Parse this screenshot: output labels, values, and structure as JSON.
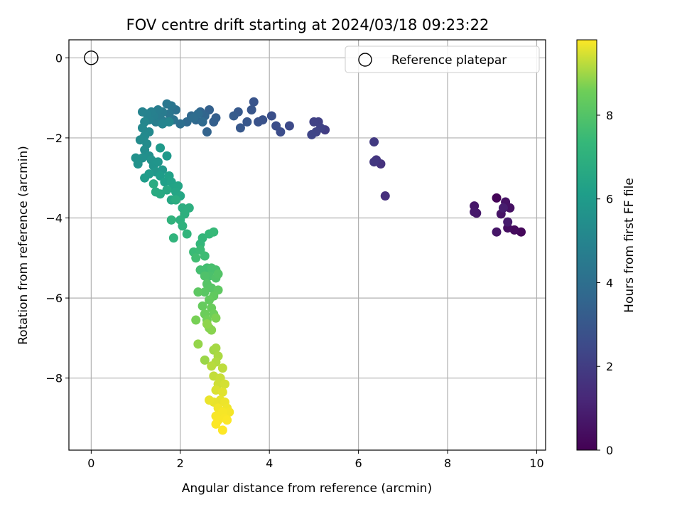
{
  "chart_data": {
    "type": "scatter",
    "title": "FOV centre drift starting at 2024/03/18 09:23:22",
    "xlabel": "Angular distance from reference (arcmin)",
    "ylabel": "Rotation from reference (arcmin)",
    "xlim": [
      -0.5,
      10.2
    ],
    "ylim": [
      -9.8,
      0.45
    ],
    "x_ticks": [
      0,
      2,
      4,
      6,
      8,
      10
    ],
    "y_ticks": [
      0,
      -2,
      -4,
      -6,
      -8
    ],
    "grid": true,
    "colormap": "viridis",
    "colorbar": {
      "label": "Hours from first FF file",
      "range": [
        0,
        9.8
      ],
      "ticks": [
        0,
        2,
        4,
        6,
        8
      ]
    },
    "legend": {
      "placement": "top-right",
      "entries": [
        {
          "label": "Reference platepar",
          "marker": "open-circle"
        }
      ]
    },
    "reference_point": {
      "x": 0,
      "y": 0
    },
    "points": [
      {
        "x": 9.1,
        "y": -3.5,
        "h": 0.1
      },
      {
        "x": 9.65,
        "y": -4.35,
        "h": 0.2
      },
      {
        "x": 9.5,
        "y": -4.3,
        "h": 0.3
      },
      {
        "x": 9.35,
        "y": -4.25,
        "h": 0.4
      },
      {
        "x": 9.4,
        "y": -3.75,
        "h": 0.5
      },
      {
        "x": 9.3,
        "y": -3.6,
        "h": 0.55
      },
      {
        "x": 9.2,
        "y": -3.9,
        "h": 0.6
      },
      {
        "x": 9.1,
        "y": -4.35,
        "h": 0.65
      },
      {
        "x": 8.6,
        "y": -3.7,
        "h": 0.7
      },
      {
        "x": 8.65,
        "y": -3.88,
        "h": 0.75
      },
      {
        "x": 8.6,
        "y": -3.85,
        "h": 0.8
      },
      {
        "x": 9.35,
        "y": -4.1,
        "h": 0.85
      },
      {
        "x": 9.25,
        "y": -3.75,
        "h": 0.9
      },
      {
        "x": 6.6,
        "y": -3.45,
        "h": 1.5
      },
      {
        "x": 6.5,
        "y": -2.65,
        "h": 1.6
      },
      {
        "x": 6.4,
        "y": -2.55,
        "h": 1.7
      },
      {
        "x": 6.35,
        "y": -2.6,
        "h": 1.8
      },
      {
        "x": 6.35,
        "y": -2.1,
        "h": 1.9
      },
      {
        "x": 5.25,
        "y": -1.8,
        "h": 2.0
      },
      {
        "x": 5.1,
        "y": -1.6,
        "h": 2.1
      },
      {
        "x": 5.0,
        "y": -1.6,
        "h": 2.15
      },
      {
        "x": 5.15,
        "y": -1.75,
        "h": 2.2
      },
      {
        "x": 5.05,
        "y": -1.85,
        "h": 2.25
      },
      {
        "x": 4.95,
        "y": -1.92,
        "h": 2.3
      },
      {
        "x": 4.45,
        "y": -1.7,
        "h": 2.5
      },
      {
        "x": 4.25,
        "y": -1.85,
        "h": 2.6
      },
      {
        "x": 4.15,
        "y": -1.7,
        "h": 2.65
      },
      {
        "x": 4.05,
        "y": -1.45,
        "h": 2.7
      },
      {
        "x": 3.85,
        "y": -1.55,
        "h": 2.8
      },
      {
        "x": 3.75,
        "y": -1.6,
        "h": 2.85
      },
      {
        "x": 3.65,
        "y": -1.1,
        "h": 2.9
      },
      {
        "x": 3.6,
        "y": -1.3,
        "h": 2.95
      },
      {
        "x": 3.5,
        "y": -1.6,
        "h": 3.0
      },
      {
        "x": 3.35,
        "y": -1.75,
        "h": 3.05
      },
      {
        "x": 3.3,
        "y": -1.35,
        "h": 3.1
      },
      {
        "x": 3.2,
        "y": -1.45,
        "h": 3.2
      },
      {
        "x": 2.8,
        "y": -1.5,
        "h": 3.3
      },
      {
        "x": 2.75,
        "y": -1.6,
        "h": 3.35
      },
      {
        "x": 2.65,
        "y": -1.3,
        "h": 3.4
      },
      {
        "x": 2.6,
        "y": -1.85,
        "h": 3.5
      },
      {
        "x": 2.55,
        "y": -1.45,
        "h": 3.55
      },
      {
        "x": 2.45,
        "y": -1.35,
        "h": 3.6
      },
      {
        "x": 2.35,
        "y": -1.55,
        "h": 3.65
      },
      {
        "x": 2.25,
        "y": -1.45,
        "h": 3.7
      },
      {
        "x": 2.15,
        "y": -1.6,
        "h": 3.75
      },
      {
        "x": 2.5,
        "y": -1.6,
        "h": 3.8
      },
      {
        "x": 2.4,
        "y": -1.4,
        "h": 3.85
      },
      {
        "x": 2.3,
        "y": -1.5,
        "h": 3.9
      },
      {
        "x": 2.0,
        "y": -1.65,
        "h": 4.0
      },
      {
        "x": 1.9,
        "y": -1.3,
        "h": 4.1
      },
      {
        "x": 1.85,
        "y": -1.55,
        "h": 4.2
      },
      {
        "x": 1.8,
        "y": -1.2,
        "h": 4.3
      },
      {
        "x": 1.75,
        "y": -1.4,
        "h": 4.35
      },
      {
        "x": 1.7,
        "y": -1.15,
        "h": 4.4
      },
      {
        "x": 1.65,
        "y": -1.6,
        "h": 4.5
      },
      {
        "x": 1.6,
        "y": -1.35,
        "h": 4.55
      },
      {
        "x": 1.55,
        "y": -1.5,
        "h": 4.6
      },
      {
        "x": 1.5,
        "y": -1.3,
        "h": 4.65
      },
      {
        "x": 1.45,
        "y": -1.6,
        "h": 4.7
      },
      {
        "x": 1.4,
        "y": -1.45,
        "h": 4.75
      },
      {
        "x": 1.35,
        "y": -1.35,
        "h": 4.8
      },
      {
        "x": 1.3,
        "y": -1.55,
        "h": 4.85
      },
      {
        "x": 1.25,
        "y": -1.4,
        "h": 4.9
      },
      {
        "x": 1.15,
        "y": -1.35,
        "h": 4.95
      },
      {
        "x": 1.6,
        "y": -1.65,
        "h": 5.0
      },
      {
        "x": 1.75,
        "y": -1.6,
        "h": 5.05
      },
      {
        "x": 1.2,
        "y": -1.6,
        "h": 5.1
      },
      {
        "x": 1.15,
        "y": -1.75,
        "h": 5.15
      },
      {
        "x": 1.3,
        "y": -1.85,
        "h": 5.2
      },
      {
        "x": 1.2,
        "y": -1.95,
        "h": 5.25
      },
      {
        "x": 1.1,
        "y": -2.05,
        "h": 5.3
      },
      {
        "x": 1.25,
        "y": -2.15,
        "h": 5.35
      },
      {
        "x": 1.2,
        "y": -2.3,
        "h": 5.4
      },
      {
        "x": 1.3,
        "y": -2.45,
        "h": 5.45
      },
      {
        "x": 1.15,
        "y": -2.5,
        "h": 5.5
      },
      {
        "x": 1.0,
        "y": -2.5,
        "h": 5.55
      },
      {
        "x": 1.05,
        "y": -2.65,
        "h": 5.6
      },
      {
        "x": 1.35,
        "y": -2.55,
        "h": 5.65
      },
      {
        "x": 1.4,
        "y": -2.7,
        "h": 5.7
      },
      {
        "x": 1.5,
        "y": -2.6,
        "h": 5.75
      },
      {
        "x": 1.45,
        "y": -2.85,
        "h": 5.8
      },
      {
        "x": 1.6,
        "y": -2.8,
        "h": 5.85
      },
      {
        "x": 1.7,
        "y": -2.45,
        "h": 5.9
      },
      {
        "x": 1.55,
        "y": -2.25,
        "h": 5.95
      },
      {
        "x": 1.3,
        "y": -2.9,
        "h": 6.0
      },
      {
        "x": 1.2,
        "y": -3.0,
        "h": 6.05
      },
      {
        "x": 1.55,
        "y": -2.95,
        "h": 6.1
      },
      {
        "x": 1.65,
        "y": -3.1,
        "h": 6.2
      },
      {
        "x": 1.75,
        "y": -2.95,
        "h": 6.25
      },
      {
        "x": 1.8,
        "y": -3.1,
        "h": 6.3
      },
      {
        "x": 1.85,
        "y": -3.25,
        "h": 6.35
      },
      {
        "x": 1.95,
        "y": -3.2,
        "h": 6.4
      },
      {
        "x": 1.9,
        "y": -3.35,
        "h": 6.45
      },
      {
        "x": 2.0,
        "y": -3.45,
        "h": 6.5
      },
      {
        "x": 1.8,
        "y": -3.55,
        "h": 6.55
      },
      {
        "x": 1.7,
        "y": -3.3,
        "h": 6.6
      },
      {
        "x": 1.55,
        "y": -3.4,
        "h": 6.65
      },
      {
        "x": 1.45,
        "y": -3.35,
        "h": 6.7
      },
      {
        "x": 1.4,
        "y": -3.15,
        "h": 6.75
      },
      {
        "x": 1.9,
        "y": -3.55,
        "h": 6.8
      },
      {
        "x": 2.05,
        "y": -3.75,
        "h": 6.85
      },
      {
        "x": 2.2,
        "y": -3.75,
        "h": 6.9
      },
      {
        "x": 2.1,
        "y": -3.9,
        "h": 6.95
      },
      {
        "x": 2.0,
        "y": -4.05,
        "h": 7.0
      },
      {
        "x": 2.05,
        "y": -4.2,
        "h": 7.05
      },
      {
        "x": 1.8,
        "y": -4.05,
        "h": 7.1
      },
      {
        "x": 1.85,
        "y": -4.5,
        "h": 7.15
      },
      {
        "x": 2.15,
        "y": -4.4,
        "h": 7.2
      },
      {
        "x": 2.5,
        "y": -4.5,
        "h": 7.25
      },
      {
        "x": 2.45,
        "y": -4.65,
        "h": 7.3
      },
      {
        "x": 2.65,
        "y": -4.4,
        "h": 7.35
      },
      {
        "x": 2.75,
        "y": -4.35,
        "h": 7.4
      },
      {
        "x": 2.3,
        "y": -4.85,
        "h": 7.45
      },
      {
        "x": 2.45,
        "y": -4.8,
        "h": 7.5
      },
      {
        "x": 2.55,
        "y": -4.95,
        "h": 7.55
      },
      {
        "x": 2.35,
        "y": -5.0,
        "h": 7.6
      },
      {
        "x": 2.6,
        "y": -5.25,
        "h": 7.65
      },
      {
        "x": 2.45,
        "y": -5.3,
        "h": 7.7
      },
      {
        "x": 2.7,
        "y": -5.25,
        "h": 7.75
      },
      {
        "x": 2.8,
        "y": -5.3,
        "h": 7.8
      },
      {
        "x": 2.65,
        "y": -5.45,
        "h": 7.85
      },
      {
        "x": 2.55,
        "y": -5.45,
        "h": 7.9
      },
      {
        "x": 2.8,
        "y": -5.5,
        "h": 7.95
      },
      {
        "x": 2.85,
        "y": -5.4,
        "h": 8.0
      },
      {
        "x": 2.6,
        "y": -5.65,
        "h": 8.05
      },
      {
        "x": 2.7,
        "y": -5.75,
        "h": 8.1
      },
      {
        "x": 2.55,
        "y": -5.85,
        "h": 8.15
      },
      {
        "x": 2.4,
        "y": -5.85,
        "h": 8.2
      },
      {
        "x": 2.85,
        "y": -5.8,
        "h": 8.25
      },
      {
        "x": 2.75,
        "y": -5.95,
        "h": 8.3
      },
      {
        "x": 2.65,
        "y": -6.05,
        "h": 8.35
      },
      {
        "x": 2.5,
        "y": -6.2,
        "h": 8.4
      },
      {
        "x": 2.7,
        "y": -6.25,
        "h": 8.45
      },
      {
        "x": 2.55,
        "y": -6.4,
        "h": 8.5
      },
      {
        "x": 2.75,
        "y": -6.4,
        "h": 8.55
      },
      {
        "x": 2.6,
        "y": -6.55,
        "h": 8.6
      },
      {
        "x": 2.35,
        "y": -6.55,
        "h": 8.65
      },
      {
        "x": 2.8,
        "y": -6.5,
        "h": 8.7
      },
      {
        "x": 2.65,
        "y": -6.75,
        "h": 8.75
      },
      {
        "x": 2.7,
        "y": -6.8,
        "h": 8.8
      },
      {
        "x": 2.6,
        "y": -6.65,
        "h": 8.85
      },
      {
        "x": 2.4,
        "y": -7.15,
        "h": 8.9
      },
      {
        "x": 2.55,
        "y": -7.55,
        "h": 8.95
      },
      {
        "x": 2.75,
        "y": -7.3,
        "h": 9.0
      },
      {
        "x": 2.8,
        "y": -7.25,
        "h": 9.05
      },
      {
        "x": 2.85,
        "y": -7.45,
        "h": 9.1
      },
      {
        "x": 2.8,
        "y": -7.6,
        "h": 9.15
      },
      {
        "x": 2.7,
        "y": -7.7,
        "h": 9.2
      },
      {
        "x": 2.95,
        "y": -7.75,
        "h": 9.25
      },
      {
        "x": 2.75,
        "y": -7.95,
        "h": 9.3
      },
      {
        "x": 2.9,
        "y": -8.0,
        "h": 9.35
      },
      {
        "x": 2.85,
        "y": -8.15,
        "h": 9.4
      },
      {
        "x": 3.0,
        "y": -8.15,
        "h": 9.45
      },
      {
        "x": 2.8,
        "y": -8.3,
        "h": 9.5
      },
      {
        "x": 2.95,
        "y": -8.35,
        "h": 9.55
      },
      {
        "x": 2.9,
        "y": -8.55,
        "h": 9.6
      },
      {
        "x": 2.75,
        "y": -8.6,
        "h": 9.62
      },
      {
        "x": 2.65,
        "y": -8.55,
        "h": 9.64
      },
      {
        "x": 3.0,
        "y": -8.6,
        "h": 9.66
      },
      {
        "x": 3.05,
        "y": -8.75,
        "h": 9.68
      },
      {
        "x": 2.85,
        "y": -8.75,
        "h": 9.7
      },
      {
        "x": 3.1,
        "y": -8.85,
        "h": 9.72
      },
      {
        "x": 2.95,
        "y": -8.85,
        "h": 9.74
      },
      {
        "x": 2.8,
        "y": -8.95,
        "h": 9.75
      },
      {
        "x": 3.0,
        "y": -9.0,
        "h": 9.76
      },
      {
        "x": 2.85,
        "y": -9.05,
        "h": 9.77
      },
      {
        "x": 3.05,
        "y": -9.05,
        "h": 9.78
      },
      {
        "x": 2.8,
        "y": -9.15,
        "h": 9.79
      },
      {
        "x": 2.95,
        "y": -9.3,
        "h": 9.8
      }
    ]
  }
}
